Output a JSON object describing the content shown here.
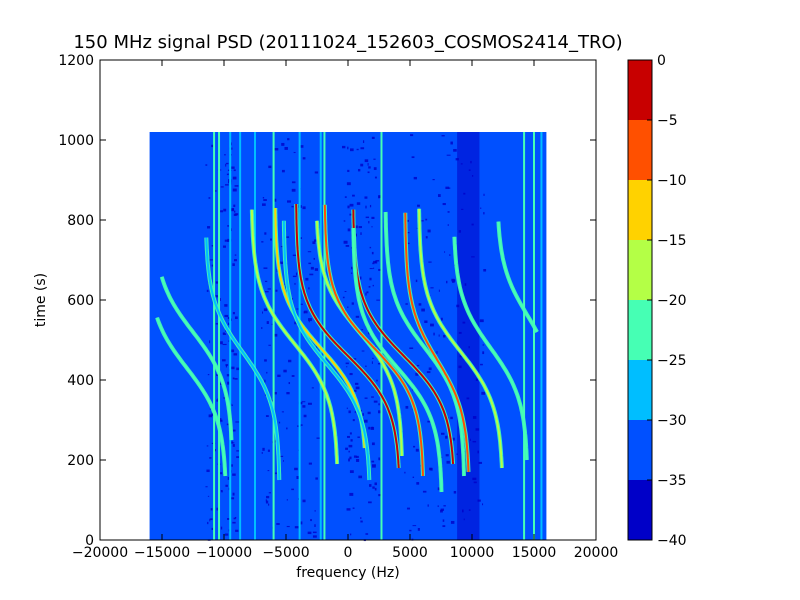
{
  "chart_data": {
    "type": "heatmap",
    "title": "150 MHz signal PSD (20111024_152603_COSMOS2414_TRO)",
    "xlabel": "frequency (Hz)",
    "ylabel": "time (s)",
    "xlim": [
      -20000,
      20000
    ],
    "ylim": [
      0,
      1200
    ],
    "xticks": [
      -20000,
      -15000,
      -10000,
      -5000,
      0,
      5000,
      10000,
      15000,
      20000
    ],
    "xtick_labels": [
      "−20000",
      "−15000",
      "−10000",
      "−5000",
      "0",
      "5000",
      "10000",
      "15000",
      "20000"
    ],
    "yticks": [
      0,
      200,
      400,
      600,
      800,
      1000,
      1200
    ],
    "ytick_labels": [
      "0",
      "200",
      "400",
      "600",
      "800",
      "1000",
      "1200"
    ],
    "data_extent": {
      "freq_min": -16000,
      "freq_max": 16000,
      "time_min": 0,
      "time_max": 1020
    },
    "background_level": -35,
    "colorbar": {
      "levels": [
        -40,
        -35,
        -30,
        -25,
        -20,
        -15,
        -10,
        -5,
        0
      ],
      "tick_labels": [
        "−40",
        "−35",
        "−30",
        "−25",
        "−20",
        "−15",
        "−10",
        "−5",
        "0"
      ],
      "colors": [
        "#0000c8",
        "#0050ff",
        "#00beff",
        "#46ffb4",
        "#b4ff46",
        "#ffd200",
        "#ff5000",
        "#c80000"
      ]
    },
    "vertical_lines": [
      {
        "freq": -10800,
        "level": -25
      },
      {
        "freq": -10400,
        "level": -25
      },
      {
        "freq": -9500,
        "level": -30
      },
      {
        "freq": -8700,
        "level": -30
      },
      {
        "freq": -7500,
        "level": -30
      },
      {
        "freq": -6000,
        "level": -25
      },
      {
        "freq": -3900,
        "level": -30
      },
      {
        "freq": -2200,
        "level": -30
      },
      {
        "freq": -1900,
        "level": -25
      },
      {
        "freq": 2700,
        "level": -25
      },
      {
        "freq": 14200,
        "level": -25
      },
      {
        "freq": 15000,
        "level": -25
      },
      {
        "freq": 15600,
        "level": -30
      }
    ],
    "doppler_traces": [
      {
        "center": -13000,
        "amplitude": 3200,
        "t_center": 430,
        "t_scale": 130,
        "t_min": 160,
        "t_max": 560,
        "level": -25
      },
      {
        "center": -12500,
        "amplitude": 3200,
        "t_center": 520,
        "t_scale": 130,
        "t_min": 250,
        "t_max": 660,
        "level": -25
      },
      {
        "center": -8500,
        "amplitude": 3000,
        "t_center": 470,
        "t_scale": 130,
        "t_min": 150,
        "t_max": 760,
        "level": -30
      },
      {
        "center": -4300,
        "amplitude": 3500,
        "t_center": 490,
        "t_scale": 135,
        "t_min": 190,
        "t_max": 830,
        "level": -20
      },
      {
        "center": -2200,
        "amplitude": 3700,
        "t_center": 480,
        "t_scale": 130,
        "t_min": 230,
        "t_max": 830,
        "level": -15
      },
      {
        "center": -1700,
        "amplitude": 3500,
        "t_center": 440,
        "t_scale": 130,
        "t_min": 150,
        "t_max": 800,
        "level": -30
      },
      {
        "center": 0,
        "amplitude": 4200,
        "t_center": 460,
        "t_scale": 130,
        "t_min": 180,
        "t_max": 840,
        "level": -5
      },
      {
        "center": 900,
        "amplitude": 3500,
        "t_center": 520,
        "t_scale": 130,
        "t_min": 210,
        "t_max": 800,
        "level": -20
      },
      {
        "center": 2100,
        "amplitude": 4000,
        "t_center": 480,
        "t_scale": 130,
        "t_min": 160,
        "t_max": 840,
        "level": -10
      },
      {
        "center": 4500,
        "amplitude": 4100,
        "t_center": 460,
        "t_scale": 130,
        "t_min": 190,
        "t_max": 830,
        "level": -5
      },
      {
        "center": 4000,
        "amplitude": 3600,
        "t_center": 430,
        "t_scale": 130,
        "t_min": 120,
        "t_max": 780,
        "level": -25
      },
      {
        "center": 6200,
        "amplitude": 3200,
        "t_center": 480,
        "t_scale": 130,
        "t_min": 160,
        "t_max": 820,
        "level": -25
      },
      {
        "center": 7200,
        "amplitude": 2600,
        "t_center": 450,
        "t_scale": 135,
        "t_min": 170,
        "t_max": 820,
        "level": -10
      },
      {
        "center": 9100,
        "amplitude": 3400,
        "t_center": 470,
        "t_scale": 135,
        "t_min": 180,
        "t_max": 830,
        "level": -20
      },
      {
        "center": 11500,
        "amplitude": 3000,
        "t_center": 480,
        "t_scale": 130,
        "t_min": 200,
        "t_max": 760,
        "level": -25
      },
      {
        "center": 14500,
        "amplitude": 2500,
        "t_center": 560,
        "t_scale": 130,
        "t_min": 520,
        "t_max": 800,
        "level": -25
      }
    ]
  }
}
